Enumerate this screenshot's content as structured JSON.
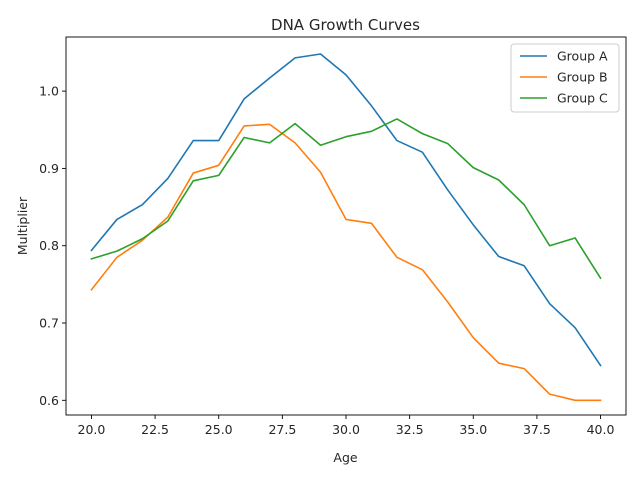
{
  "chart_data": {
    "type": "line",
    "title": "DNA Growth Curves",
    "xlabel": "Age",
    "ylabel": "Multiplier",
    "xlim": [
      19.0,
      41.0
    ],
    "ylim": [
      0.581,
      1.07
    ],
    "xticks": [
      20.0,
      22.5,
      25.0,
      27.5,
      30.0,
      32.5,
      35.0,
      37.5,
      40.0
    ],
    "xtick_labels": [
      "20.0",
      "22.5",
      "25.0",
      "27.5",
      "30.0",
      "32.5",
      "35.0",
      "37.5",
      "40.0"
    ],
    "yticks": [
      0.6,
      0.7,
      0.8,
      0.9,
      1.0
    ],
    "ytick_labels": [
      "0.6",
      "0.7",
      "0.8",
      "0.9",
      "1.0"
    ],
    "grid": false,
    "legend_position": "top-right",
    "x": [
      20,
      21,
      22,
      23,
      24,
      25,
      26,
      27,
      28,
      29,
      30,
      31,
      32,
      33,
      34,
      35,
      36,
      37,
      38,
      39,
      40
    ],
    "series": [
      {
        "name": "Group A",
        "color": "#1f77b4",
        "values": [
          0.794,
          0.834,
          0.853,
          0.887,
          0.936,
          0.936,
          0.99,
          1.017,
          1.043,
          1.048,
          1.021,
          0.981,
          0.936,
          0.921,
          0.872,
          0.827,
          0.786,
          0.774,
          0.725,
          0.694,
          0.645
        ]
      },
      {
        "name": "Group B",
        "color": "#ff7f0e",
        "values": [
          0.743,
          0.785,
          0.807,
          0.837,
          0.894,
          0.904,
          0.955,
          0.957,
          0.933,
          0.895,
          0.834,
          0.829,
          0.785,
          0.769,
          0.727,
          0.681,
          0.648,
          0.641,
          0.608,
          0.6,
          0.6
        ]
      },
      {
        "name": "Group C",
        "color": "#2ca02c",
        "values": [
          0.783,
          0.793,
          0.809,
          0.832,
          0.884,
          0.891,
          0.94,
          0.933,
          0.958,
          0.93,
          0.941,
          0.948,
          0.964,
          0.945,
          0.932,
          0.901,
          0.885,
          0.853,
          0.8,
          0.81,
          0.758
        ]
      }
    ]
  }
}
